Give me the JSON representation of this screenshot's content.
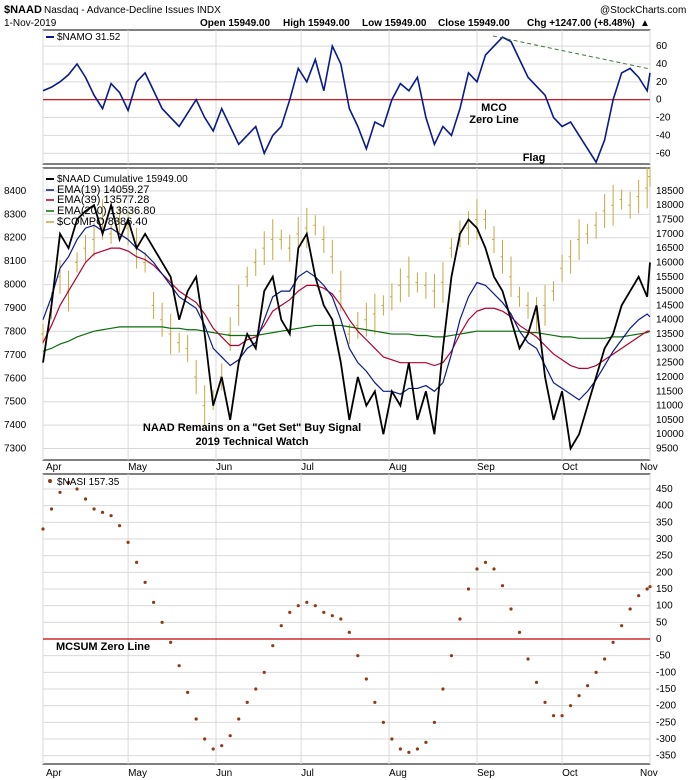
{
  "header": {
    "symbol": "$NAAD",
    "name": "Nasdaq - Advance-Decline Issues INDX",
    "date": "1-Nov-2019",
    "open": "Open 15949.00",
    "high": "High 15949.00",
    "low": "Low 15949.00",
    "close": "Close 15949.00",
    "chg": "Chg +1247.00 (+8.48%)",
    "chg_arrow": "▲",
    "brand": "@StockCharts.com"
  },
  "colors": {
    "navy": "#0a1a8c",
    "red": "#c80000",
    "black": "#000000",
    "darkred": "#b3002d",
    "green": "#0a6e0a",
    "gold": "#c8a640",
    "brown": "#8b3a1a",
    "flag_green": "#3c7a3c",
    "grid": "#d9d9d9"
  },
  "months": [
    "Apr",
    "May",
    "Jun",
    "Jul",
    "Aug",
    "Sep",
    "Oct",
    "Nov"
  ],
  "chart_data": [
    {
      "type": "line",
      "panel": "top",
      "legend": "$NAMO 31.52",
      "y_ticks": [
        60,
        40,
        20,
        0,
        -20,
        -40,
        -60
      ],
      "ylim": [
        -72,
        78
      ],
      "x": [
        0,
        3,
        6,
        9,
        12,
        15,
        18,
        21,
        24,
        27,
        30,
        33,
        36,
        39,
        42,
        45,
        48,
        51,
        54,
        57,
        60,
        63,
        66,
        69,
        72,
        75,
        78,
        81,
        84,
        87,
        90,
        93,
        96,
        99,
        102,
        105,
        108,
        111,
        114,
        117,
        120,
        123,
        126,
        129,
        132,
        135,
        138,
        141,
        144,
        147,
        150,
        153,
        156,
        159,
        162,
        165,
        168,
        171,
        174,
        177,
        180,
        183,
        186,
        189,
        192,
        195,
        198,
        201,
        204,
        207,
        210,
        213,
        214
      ],
      "values": [
        10,
        14,
        20,
        28,
        40,
        25,
        5,
        -10,
        18,
        8,
        -12,
        20,
        30,
        10,
        -10,
        -20,
        -30,
        -15,
        0,
        -20,
        -35,
        -10,
        -30,
        -50,
        -40,
        -30,
        -60,
        -40,
        -30,
        0,
        35,
        20,
        45,
        10,
        60,
        40,
        -10,
        -30,
        -55,
        -25,
        -30,
        0,
        18,
        10,
        25,
        -20,
        -50,
        -30,
        -40,
        -10,
        30,
        20,
        50,
        60,
        70,
        65,
        45,
        25,
        15,
        5,
        -20,
        -30,
        -25,
        -40,
        -55,
        -70,
        -45,
        0,
        30,
        35,
        25,
        10,
        30
      ],
      "annotations": [
        "MCO",
        "Zero Line",
        "Flag"
      ]
    },
    {
      "type": "line",
      "panel": "middle",
      "legend": "$NAAD Cumulative 15949.00",
      "legend_entries": [
        "EMA(19) 14059.27",
        "EMA(39) 13577.28",
        "EMA(200) 13636.80",
        "$COMPO 8386.40"
      ],
      "left_ticks": [
        8400,
        8300,
        8200,
        8100,
        8000,
        7900,
        7800,
        7700,
        7600,
        7500,
        7400,
        7300
      ],
      "right_ticks": [
        18500,
        18000,
        17500,
        17000,
        16500,
        16000,
        15500,
        15000,
        14500,
        14000,
        13500,
        13000,
        12500,
        12000,
        11500,
        11000,
        10500,
        10000,
        9500
      ],
      "right_range": [
        9100,
        19300
      ],
      "x": [
        0,
        3,
        6,
        9,
        12,
        15,
        18,
        21,
        24,
        27,
        30,
        33,
        36,
        39,
        42,
        45,
        48,
        51,
        54,
        57,
        60,
        63,
        66,
        69,
        72,
        75,
        78,
        81,
        84,
        87,
        90,
        93,
        96,
        99,
        102,
        105,
        108,
        111,
        114,
        117,
        120,
        123,
        126,
        129,
        132,
        135,
        138,
        141,
        144,
        147,
        150,
        153,
        156,
        159,
        162,
        165,
        168,
        171,
        174,
        177,
        180,
        183,
        186,
        189,
        192,
        195,
        198,
        201,
        204,
        207,
        210,
        213,
        214
      ],
      "naad": [
        12500,
        14500,
        17000,
        16500,
        17500,
        17800,
        18000,
        17000,
        18000,
        16800,
        17500,
        16500,
        17000,
        16500,
        16000,
        15500,
        14000,
        15000,
        15500,
        13500,
        11000,
        12000,
        10500,
        12500,
        13500,
        13000,
        15000,
        15500,
        14000,
        13500,
        16500,
        17000,
        15500,
        14500,
        14000,
        12500,
        10500,
        12000,
        11000,
        11500,
        10000,
        11500,
        11000,
        12500,
        10500,
        11500,
        10000,
        13000,
        15500,
        17000,
        17500,
        17200,
        16500,
        15500,
        15000,
        14000,
        13000,
        13500,
        14500,
        12000,
        10500,
        11500,
        9500,
        10000,
        11000,
        12000,
        13000,
        13500,
        14500,
        15000,
        15500,
        14800,
        16000
      ],
      "ema19": [
        14000,
        14800,
        15800,
        16200,
        16800,
        17200,
        17300,
        17100,
        17200,
        17000,
        16800,
        16500,
        16300,
        16000,
        15600,
        15200,
        14800,
        14600,
        14400,
        13800,
        13000,
        12700,
        12400,
        12600,
        13000,
        13200,
        14000,
        14800,
        15000,
        15000,
        15500,
        15700,
        15500,
        15200,
        14800,
        14000,
        13000,
        12500,
        12200,
        11800,
        11500,
        11500,
        11400,
        11600,
        11600,
        11700,
        11500,
        11800,
        12800,
        14000,
        14800,
        15300,
        15200,
        14900,
        14600,
        14200,
        13600,
        13200,
        13000,
        12400,
        11800,
        11600,
        11400,
        11200,
        11500,
        11900,
        12400,
        12900,
        13300,
        13700,
        14000,
        14200,
        14100
      ],
      "ema39": [
        13200,
        13800,
        14500,
        15000,
        15500,
        16000,
        16300,
        16400,
        16500,
        16500,
        16400,
        16200,
        16100,
        15900,
        15600,
        15300,
        15000,
        14800,
        14600,
        14200,
        13700,
        13400,
        13100,
        13100,
        13300,
        13400,
        13800,
        14300,
        14500,
        14700,
        15000,
        15200,
        15200,
        15100,
        14900,
        14500,
        14000,
        13600,
        13300,
        13000,
        12700,
        12600,
        12500,
        12500,
        12500,
        12500,
        12400,
        12500,
        12900,
        13500,
        14000,
        14300,
        14400,
        14400,
        14300,
        14100,
        13800,
        13600,
        13400,
        13100,
        12800,
        12600,
        12400,
        12300,
        12300,
        12400,
        12600,
        12800,
        13000,
        13200,
        13400,
        13600,
        13600
      ],
      "ema200": [
        12900,
        13000,
        13150,
        13250,
        13400,
        13500,
        13600,
        13650,
        13700,
        13750,
        13750,
        13750,
        13750,
        13750,
        13750,
        13700,
        13700,
        13650,
        13650,
        13600,
        13550,
        13500,
        13450,
        13450,
        13450,
        13450,
        13500,
        13550,
        13600,
        13650,
        13700,
        13750,
        13800,
        13800,
        13800,
        13800,
        13750,
        13700,
        13650,
        13600,
        13550,
        13500,
        13500,
        13500,
        13450,
        13450,
        13400,
        13400,
        13450,
        13500,
        13550,
        13600,
        13600,
        13600,
        13600,
        13600,
        13600,
        13550,
        13550,
        13500,
        13450,
        13400,
        13400,
        13350,
        13350,
        13350,
        13350,
        13400,
        13400,
        13450,
        13500,
        13550,
        13600
      ],
      "compo": [
        13500,
        14500,
        15500,
        15000,
        16000,
        16500,
        16800,
        17500,
        17000,
        17500,
        17200,
        16500,
        16000,
        14500,
        14000,
        13500,
        13200,
        13000,
        12000,
        11000,
        11200,
        12000,
        13500,
        14500,
        15500,
        16000,
        16500,
        16800,
        16800,
        16500,
        17000,
        17200,
        17300,
        16800,
        16200,
        15000,
        13500,
        13800,
        14000,
        14200,
        14500,
        14800,
        15200,
        15500,
        15300,
        15200,
        15000,
        15300,
        16500,
        17000,
        17200,
        17500,
        17500,
        16800,
        16200,
        15500,
        14800,
        14500,
        14200,
        14500,
        15000,
        15800,
        16200,
        16800,
        17000,
        17300,
        17800,
        18000,
        18200,
        18000,
        18300,
        18600,
        19000
      ],
      "annotations": [
        "NAAD Remains on a \"Get Set\" Buy Signal",
        "2019 Technical Watch"
      ]
    },
    {
      "type": "scatter",
      "panel": "bottom",
      "legend": "$NASI 157.35",
      "y_ticks": [
        450,
        400,
        350,
        300,
        250,
        200,
        150,
        100,
        50,
        0,
        -50,
        -100,
        -150,
        -200,
        -250,
        -300,
        -350
      ],
      "ylim": [
        -375,
        495
      ],
      "x": [
        0,
        3,
        6,
        9,
        12,
        15,
        18,
        21,
        24,
        27,
        30,
        33,
        36,
        39,
        42,
        45,
        48,
        51,
        54,
        57,
        60,
        63,
        66,
        69,
        72,
        75,
        78,
        81,
        84,
        87,
        90,
        93,
        96,
        99,
        102,
        105,
        108,
        111,
        114,
        117,
        120,
        123,
        126,
        129,
        132,
        135,
        138,
        141,
        144,
        147,
        150,
        153,
        156,
        159,
        162,
        165,
        168,
        171,
        174,
        177,
        180,
        183,
        186,
        189,
        192,
        195,
        198,
        201,
        204,
        207,
        210,
        213,
        214
      ],
      "values": [
        330,
        390,
        440,
        470,
        450,
        420,
        390,
        380,
        370,
        340,
        290,
        230,
        170,
        110,
        50,
        -10,
        -80,
        -160,
        -240,
        -300,
        -330,
        -320,
        -290,
        -240,
        -190,
        -150,
        -100,
        -20,
        40,
        80,
        100,
        110,
        100,
        80,
        70,
        60,
        20,
        -50,
        -120,
        -190,
        -250,
        -300,
        -330,
        -340,
        -330,
        -310,
        -250,
        -150,
        -50,
        60,
        150,
        210,
        230,
        210,
        160,
        90,
        20,
        -60,
        -130,
        -190,
        -230,
        -230,
        -200,
        -170,
        -140,
        -100,
        -60,
        -10,
        40,
        90,
        130,
        150,
        157
      ],
      "annotations": [
        "MCSUM Zero Line"
      ]
    }
  ]
}
